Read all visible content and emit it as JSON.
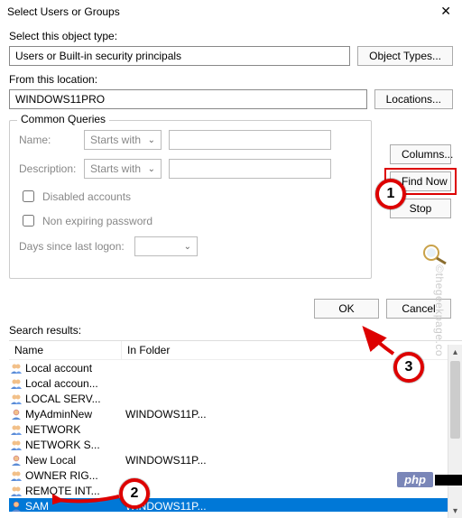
{
  "window": {
    "title": "Select Users or Groups"
  },
  "object_type": {
    "label": "Select this object type:",
    "value": "Users or Built-in security principals",
    "button": "Object Types..."
  },
  "location": {
    "label": "From this location:",
    "value": "WINDOWS11PRO",
    "button": "Locations..."
  },
  "queries": {
    "legend": "Common Queries",
    "name_label": "Name:",
    "name_mode": "Starts with",
    "desc_label": "Description:",
    "desc_mode": "Starts with",
    "disabled_label": "Disabled accounts",
    "nonexpiring_label": "Non expiring password",
    "days_label": "Days since last logon:"
  },
  "side_buttons": {
    "columns": "Columns...",
    "find_now": "Find Now",
    "stop": "Stop"
  },
  "actions": {
    "ok": "OK",
    "cancel": "Cancel"
  },
  "results": {
    "label": "Search results:",
    "col_name": "Name",
    "col_folder": "In Folder",
    "rows": [
      {
        "name": "Local account",
        "folder": "",
        "icon": "group"
      },
      {
        "name": "Local accoun...",
        "folder": "",
        "icon": "group"
      },
      {
        "name": "LOCAL SERV...",
        "folder": "",
        "icon": "group"
      },
      {
        "name": "MyAdminNew",
        "folder": "WINDOWS11P...",
        "icon": "user"
      },
      {
        "name": "NETWORK",
        "folder": "",
        "icon": "group"
      },
      {
        "name": "NETWORK S...",
        "folder": "",
        "icon": "group"
      },
      {
        "name": "New Local",
        "folder": "WINDOWS11P...",
        "icon": "user"
      },
      {
        "name": "OWNER RIG...",
        "folder": "",
        "icon": "group"
      },
      {
        "name": "REMOTE INT...",
        "folder": "",
        "icon": "group"
      },
      {
        "name": "SAM",
        "folder": "WINDOWS11P...",
        "icon": "user",
        "selected": true
      }
    ]
  },
  "annotations": {
    "circle1": "1",
    "circle2": "2",
    "circle3": "3",
    "highlight_color": "#d00000",
    "arrow_color": "#d00000"
  },
  "watermark": "©thegeekpage.co",
  "badges": {
    "php": "php"
  }
}
